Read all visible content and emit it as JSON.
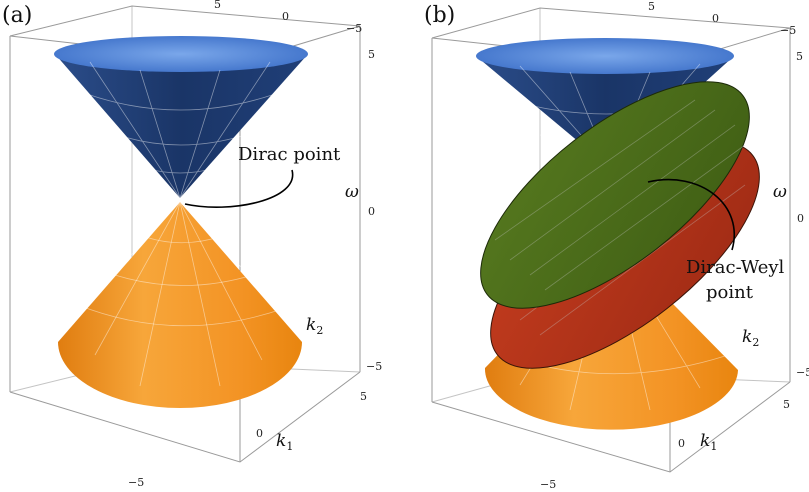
{
  "panels": [
    {
      "label": "(a)",
      "annotation": "Dirac point",
      "ticks": {
        "top_k2": [
          "5",
          "0",
          "−5"
        ],
        "omega": [
          "5",
          "0",
          "−5"
        ],
        "k2_right": "5",
        "k1": [
          "5",
          "0",
          "−5"
        ]
      },
      "axis_labels": {
        "omega": "ω",
        "k2": "k",
        "k2_sub": "2",
        "k1": "k",
        "k1_sub": "1"
      }
    },
    {
      "label": "(b)",
      "annotation_line1": "Dirac-Weyl",
      "annotation_line2": "point",
      "ticks": {
        "top_k2": [
          "5",
          "0",
          "−5"
        ],
        "omega": [
          "5",
          "0",
          "−5"
        ],
        "k2_right": "5",
        "k1": [
          "5",
          "0",
          "−5"
        ]
      },
      "axis_labels": {
        "omega": "ω",
        "k2": "k",
        "k2_sub": "2",
        "k1": "k",
        "k1_sub": "1"
      }
    }
  ],
  "colors": {
    "upper_cone": "#1f3d73",
    "upper_cone_rim": "#4f86d8",
    "lower_cone": "#f39a26",
    "green_plane": "#4e6e1b",
    "red_plane": "#b8321c",
    "box": "#9a9a9a"
  }
}
